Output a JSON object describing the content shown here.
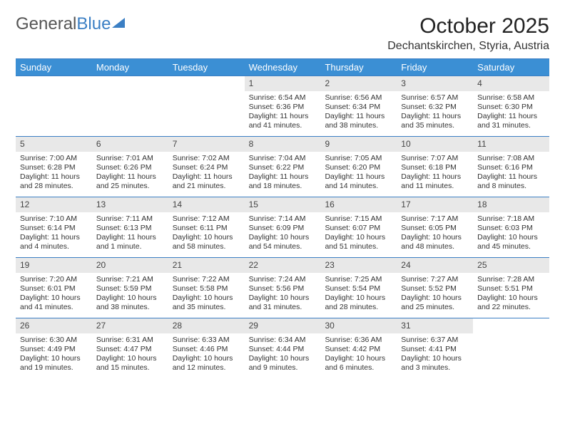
{
  "logo": {
    "part1": "General",
    "part2": "Blue"
  },
  "title": "October 2025",
  "location": "Dechantskirchen, Styria, Austria",
  "colors": {
    "header_bg": "#3b8fd4",
    "header_text": "#ffffff",
    "border": "#3b7fc4",
    "daynum_bg": "#e8e8e8",
    "text": "#333333",
    "background": "#ffffff"
  },
  "day_names": [
    "Sunday",
    "Monday",
    "Tuesday",
    "Wednesday",
    "Thursday",
    "Friday",
    "Saturday"
  ],
  "weeks": [
    [
      {
        "n": "",
        "sr": "",
        "ss": "",
        "dl": ""
      },
      {
        "n": "",
        "sr": "",
        "ss": "",
        "dl": ""
      },
      {
        "n": "",
        "sr": "",
        "ss": "",
        "dl": ""
      },
      {
        "n": "1",
        "sr": "Sunrise: 6:54 AM",
        "ss": "Sunset: 6:36 PM",
        "dl": "Daylight: 11 hours and 41 minutes."
      },
      {
        "n": "2",
        "sr": "Sunrise: 6:56 AM",
        "ss": "Sunset: 6:34 PM",
        "dl": "Daylight: 11 hours and 38 minutes."
      },
      {
        "n": "3",
        "sr": "Sunrise: 6:57 AM",
        "ss": "Sunset: 6:32 PM",
        "dl": "Daylight: 11 hours and 35 minutes."
      },
      {
        "n": "4",
        "sr": "Sunrise: 6:58 AM",
        "ss": "Sunset: 6:30 PM",
        "dl": "Daylight: 11 hours and 31 minutes."
      }
    ],
    [
      {
        "n": "5",
        "sr": "Sunrise: 7:00 AM",
        "ss": "Sunset: 6:28 PM",
        "dl": "Daylight: 11 hours and 28 minutes."
      },
      {
        "n": "6",
        "sr": "Sunrise: 7:01 AM",
        "ss": "Sunset: 6:26 PM",
        "dl": "Daylight: 11 hours and 25 minutes."
      },
      {
        "n": "7",
        "sr": "Sunrise: 7:02 AM",
        "ss": "Sunset: 6:24 PM",
        "dl": "Daylight: 11 hours and 21 minutes."
      },
      {
        "n": "8",
        "sr": "Sunrise: 7:04 AM",
        "ss": "Sunset: 6:22 PM",
        "dl": "Daylight: 11 hours and 18 minutes."
      },
      {
        "n": "9",
        "sr": "Sunrise: 7:05 AM",
        "ss": "Sunset: 6:20 PM",
        "dl": "Daylight: 11 hours and 14 minutes."
      },
      {
        "n": "10",
        "sr": "Sunrise: 7:07 AM",
        "ss": "Sunset: 6:18 PM",
        "dl": "Daylight: 11 hours and 11 minutes."
      },
      {
        "n": "11",
        "sr": "Sunrise: 7:08 AM",
        "ss": "Sunset: 6:16 PM",
        "dl": "Daylight: 11 hours and 8 minutes."
      }
    ],
    [
      {
        "n": "12",
        "sr": "Sunrise: 7:10 AM",
        "ss": "Sunset: 6:14 PM",
        "dl": "Daylight: 11 hours and 4 minutes."
      },
      {
        "n": "13",
        "sr": "Sunrise: 7:11 AM",
        "ss": "Sunset: 6:13 PM",
        "dl": "Daylight: 11 hours and 1 minute."
      },
      {
        "n": "14",
        "sr": "Sunrise: 7:12 AM",
        "ss": "Sunset: 6:11 PM",
        "dl": "Daylight: 10 hours and 58 minutes."
      },
      {
        "n": "15",
        "sr": "Sunrise: 7:14 AM",
        "ss": "Sunset: 6:09 PM",
        "dl": "Daylight: 10 hours and 54 minutes."
      },
      {
        "n": "16",
        "sr": "Sunrise: 7:15 AM",
        "ss": "Sunset: 6:07 PM",
        "dl": "Daylight: 10 hours and 51 minutes."
      },
      {
        "n": "17",
        "sr": "Sunrise: 7:17 AM",
        "ss": "Sunset: 6:05 PM",
        "dl": "Daylight: 10 hours and 48 minutes."
      },
      {
        "n": "18",
        "sr": "Sunrise: 7:18 AM",
        "ss": "Sunset: 6:03 PM",
        "dl": "Daylight: 10 hours and 45 minutes."
      }
    ],
    [
      {
        "n": "19",
        "sr": "Sunrise: 7:20 AM",
        "ss": "Sunset: 6:01 PM",
        "dl": "Daylight: 10 hours and 41 minutes."
      },
      {
        "n": "20",
        "sr": "Sunrise: 7:21 AM",
        "ss": "Sunset: 5:59 PM",
        "dl": "Daylight: 10 hours and 38 minutes."
      },
      {
        "n": "21",
        "sr": "Sunrise: 7:22 AM",
        "ss": "Sunset: 5:58 PM",
        "dl": "Daylight: 10 hours and 35 minutes."
      },
      {
        "n": "22",
        "sr": "Sunrise: 7:24 AM",
        "ss": "Sunset: 5:56 PM",
        "dl": "Daylight: 10 hours and 31 minutes."
      },
      {
        "n": "23",
        "sr": "Sunrise: 7:25 AM",
        "ss": "Sunset: 5:54 PM",
        "dl": "Daylight: 10 hours and 28 minutes."
      },
      {
        "n": "24",
        "sr": "Sunrise: 7:27 AM",
        "ss": "Sunset: 5:52 PM",
        "dl": "Daylight: 10 hours and 25 minutes."
      },
      {
        "n": "25",
        "sr": "Sunrise: 7:28 AM",
        "ss": "Sunset: 5:51 PM",
        "dl": "Daylight: 10 hours and 22 minutes."
      }
    ],
    [
      {
        "n": "26",
        "sr": "Sunrise: 6:30 AM",
        "ss": "Sunset: 4:49 PM",
        "dl": "Daylight: 10 hours and 19 minutes."
      },
      {
        "n": "27",
        "sr": "Sunrise: 6:31 AM",
        "ss": "Sunset: 4:47 PM",
        "dl": "Daylight: 10 hours and 15 minutes."
      },
      {
        "n": "28",
        "sr": "Sunrise: 6:33 AM",
        "ss": "Sunset: 4:46 PM",
        "dl": "Daylight: 10 hours and 12 minutes."
      },
      {
        "n": "29",
        "sr": "Sunrise: 6:34 AM",
        "ss": "Sunset: 4:44 PM",
        "dl": "Daylight: 10 hours and 9 minutes."
      },
      {
        "n": "30",
        "sr": "Sunrise: 6:36 AM",
        "ss": "Sunset: 4:42 PM",
        "dl": "Daylight: 10 hours and 6 minutes."
      },
      {
        "n": "31",
        "sr": "Sunrise: 6:37 AM",
        "ss": "Sunset: 4:41 PM",
        "dl": "Daylight: 10 hours and 3 minutes."
      },
      {
        "n": "",
        "sr": "",
        "ss": "",
        "dl": ""
      }
    ]
  ]
}
